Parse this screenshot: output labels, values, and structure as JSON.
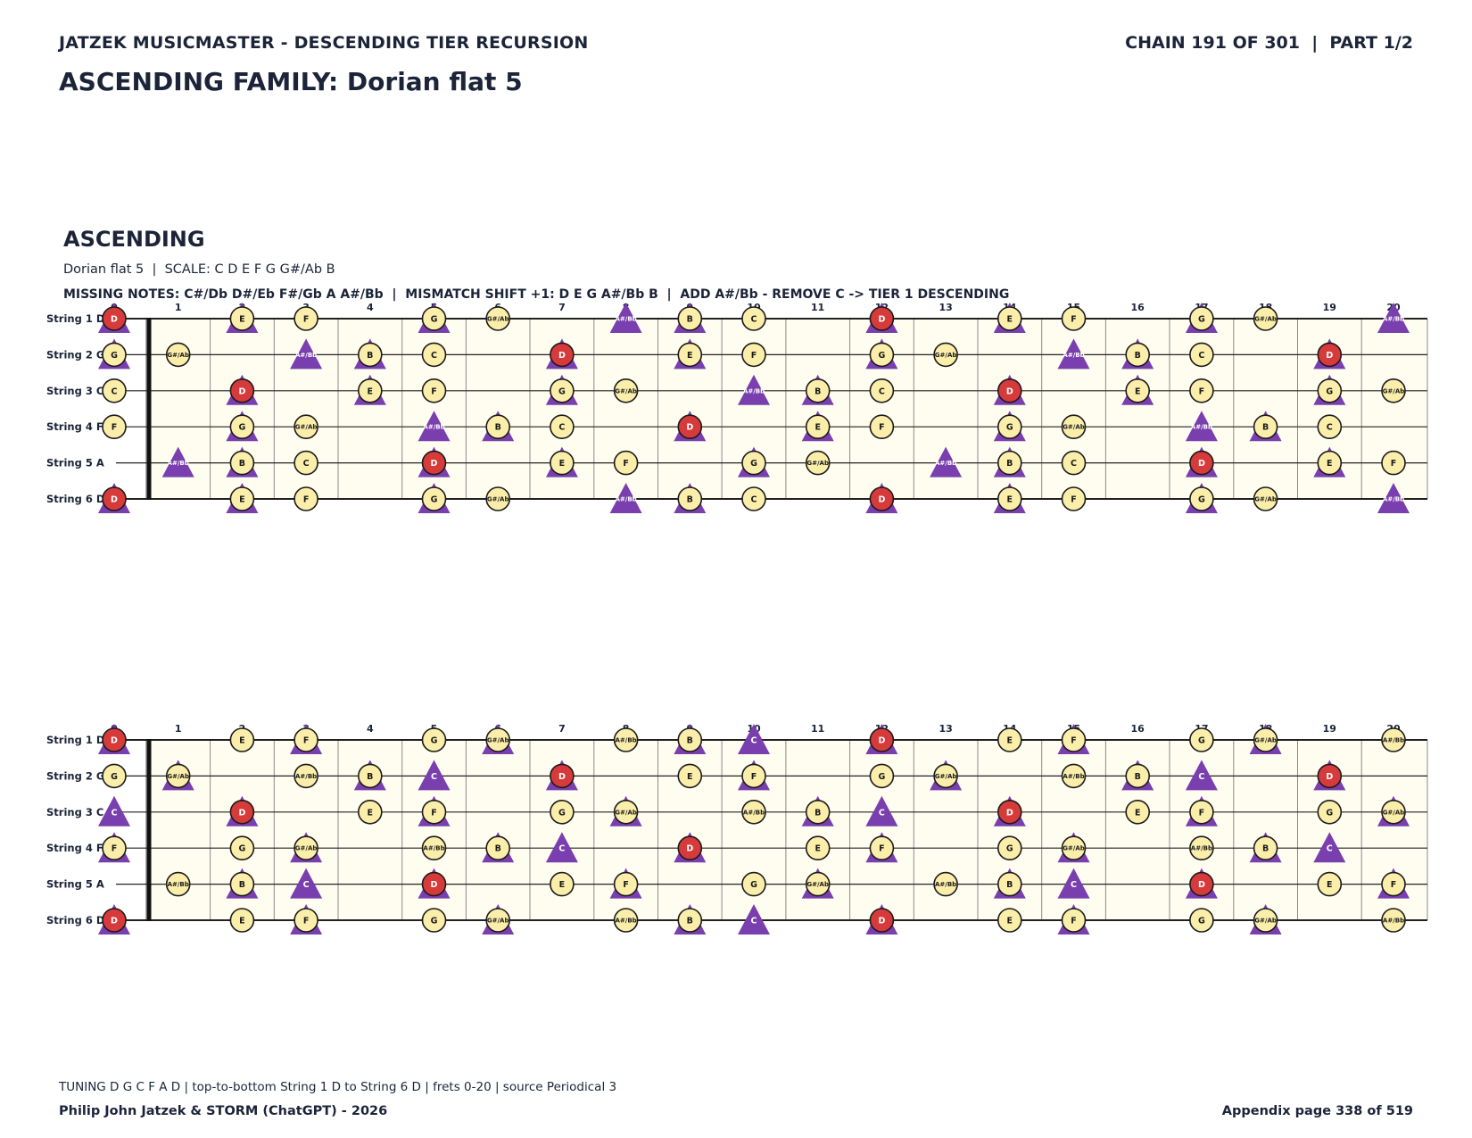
{
  "header": {
    "left": "JATZEK MUSICMASTER - DESCENDING TIER RECURSION",
    "right": "CHAIN 191 OF 301  |  PART 1/2",
    "family": "ASCENDING FAMILY: Dorian flat 5"
  },
  "section": {
    "title": "ASCENDING",
    "scale_line": "Dorian flat 5  |  SCALE: C D E F G G#/Ab B",
    "missing_line": "MISSING NOTES: C#/Db D#/Eb F#/Gb A A#/Bb  |  MISMATCH SHIFT +1: D E G A#/Bb B  |  ADD A#/Bb - REMOVE C -> TIER 1 DESCENDING"
  },
  "footer": {
    "tuning": "TUNING D G C F A D | top-to-bottom String 1 D to String 6 D | frets 0-20 | source Periodical 3",
    "authors": "Philip John Jatzek & STORM (ChatGPT) - 2026",
    "page": "Appendix page 338 of 519"
  },
  "colors": {
    "root": "#d63a3a",
    "note": "#fbeeaa",
    "triangle": "#7a3fae",
    "board": "#fffdf0",
    "ink": "#1b2438"
  },
  "fretboard": {
    "frets": 20,
    "chromatic": [
      "C",
      "C#/Db",
      "D",
      "D#/Eb",
      "E",
      "F",
      "F#/Gb",
      "G",
      "G#/Ab",
      "A",
      "A#/Bb",
      "B"
    ],
    "strings": [
      {
        "label": "String 1 D",
        "open": "D"
      },
      {
        "label": "String 2 G",
        "open": "G"
      },
      {
        "label": "String 3 C",
        "open": "C"
      },
      {
        "label": "String 4 F",
        "open": "F"
      },
      {
        "label": "String 5 A",
        "open": "A"
      },
      {
        "label": "String 6 D",
        "open": "D"
      }
    ],
    "boards": [
      {
        "name": "board-1",
        "circles": [
          "C",
          "D",
          "E",
          "F",
          "G",
          "G#/Ab",
          "B"
        ],
        "triangles": [
          "D",
          "E",
          "G",
          "A#/Bb",
          "B"
        ],
        "root": "D"
      },
      {
        "name": "board-2",
        "circles": [
          "D",
          "E",
          "F",
          "G",
          "G#/Ab",
          "A#/Bb",
          "B"
        ],
        "triangles": [
          "C",
          "D",
          "F",
          "G#/Ab",
          "B"
        ],
        "root": "D"
      }
    ]
  }
}
